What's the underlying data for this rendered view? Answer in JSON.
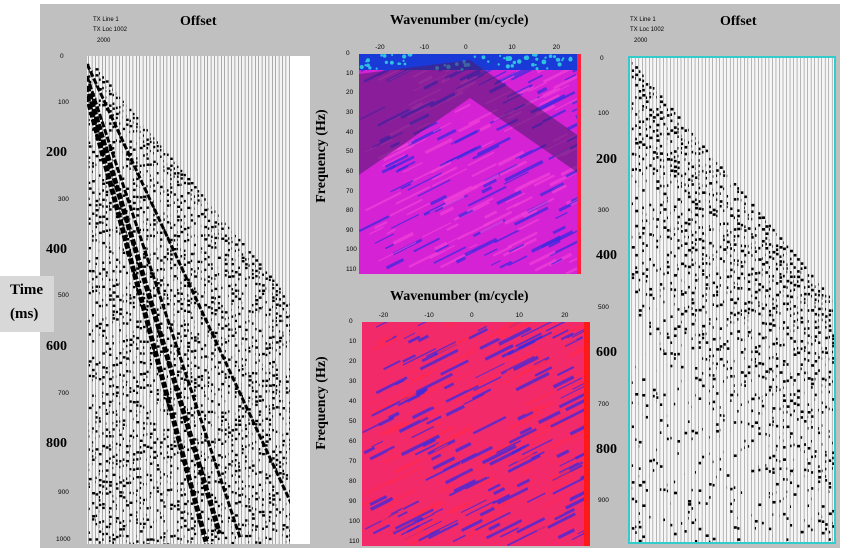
{
  "left_header": {
    "line1": "TX Line 1",
    "line2": "TX Loc 1002",
    "mark": "2000",
    "title": "Offset"
  },
  "right_header": {
    "line1": "TX Line 1",
    "line2": "TX Loc 1002",
    "mark": "2000",
    "title": "Offset"
  },
  "time_label": {
    "line1": "Time",
    "line2": "(ms)"
  },
  "top_fk": {
    "title": "Wavenumber (m/cycle)",
    "ylabel": "Frequency (Hz)"
  },
  "bottom_fk": {
    "title": "Wavenumber (m/cycle)",
    "ylabel": "Frequency (Hz)"
  },
  "colors": {
    "background": "#c0c0c0",
    "fk_blue": "#2020d0",
    "fk_magenta": "#e020e0",
    "fk_red": "#ff2040",
    "right_border": "#33cccc"
  },
  "chart_data": [
    {
      "type": "heatmap",
      "name_hint": "left-seismic-gather",
      "x_ticks_visible": false,
      "y_ticks_small": [
        "0",
        "100",
        "300",
        "500",
        "700",
        "900",
        "1000"
      ],
      "y_ticks_big": [
        "200",
        "400",
        "600",
        "800"
      ],
      "ylim": [
        0,
        1000
      ]
    },
    {
      "type": "heatmap",
      "name_hint": "top-fk-spectrum",
      "x_ticks": [
        "-20",
        "-10",
        "0",
        "10",
        "20"
      ],
      "y_ticks": [
        "0",
        "10",
        "20",
        "30",
        "40",
        "50",
        "60",
        "70",
        "80",
        "90",
        "100",
        "110"
      ],
      "xlim": [
        -25,
        25
      ],
      "ylim": [
        0,
        112
      ],
      "legend": "none"
    },
    {
      "type": "heatmap",
      "name_hint": "bottom-fk-spectrum",
      "x_ticks": [
        "-20",
        "-10",
        "0",
        "10",
        "20"
      ],
      "y_ticks": [
        "0",
        "10",
        "20",
        "30",
        "40",
        "50",
        "60",
        "70",
        "80",
        "90",
        "100",
        "110"
      ],
      "xlim": [
        -25,
        25
      ],
      "ylim": [
        0,
        112
      ],
      "legend": "none"
    },
    {
      "type": "heatmap",
      "name_hint": "right-seismic-gather",
      "y_ticks_small": [
        "0",
        "100",
        "300",
        "500",
        "700",
        "900"
      ],
      "y_ticks_big": [
        "200",
        "400",
        "600",
        "800"
      ],
      "ylim": [
        0,
        1000
      ]
    }
  ]
}
